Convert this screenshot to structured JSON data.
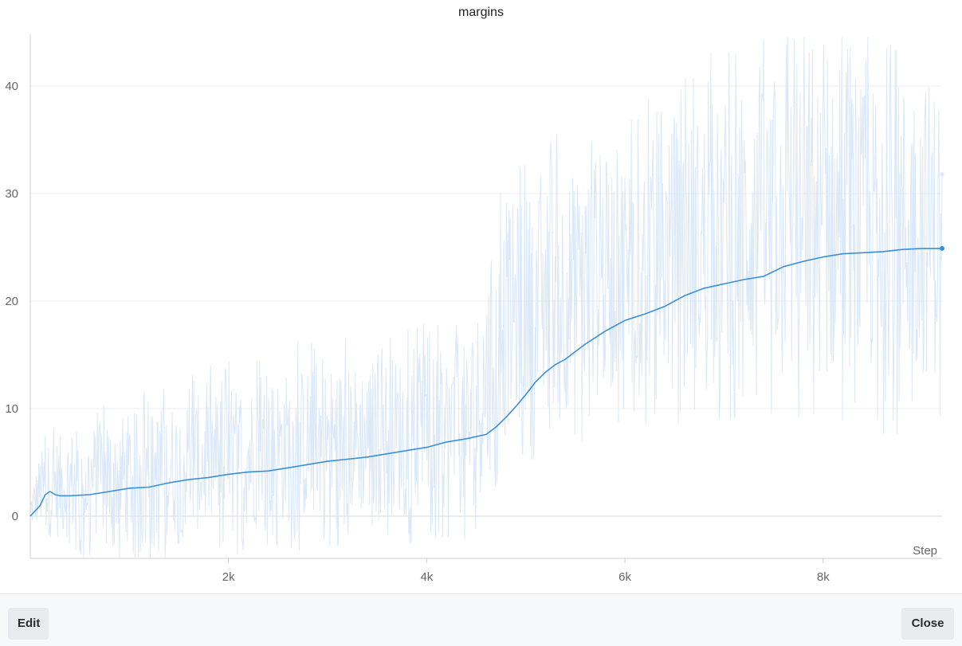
{
  "chart_data": {
    "type": "line",
    "title": "margins",
    "xlabel": "Step",
    "ylabel": "",
    "xlim": [
      0,
      9200
    ],
    "ylim": [
      -4,
      45
    ],
    "x_ticks": [
      2000,
      4000,
      6000,
      8000
    ],
    "x_tick_labels": [
      "2k",
      "4k",
      "6k",
      "8k"
    ],
    "y_ticks": [
      0,
      10,
      20,
      30,
      40
    ],
    "y_tick_labels": [
      "0",
      "10",
      "20",
      "30",
      "40"
    ],
    "grid": true,
    "series": [
      {
        "kind": "raw",
        "color": "#dbe8f7",
        "band_x": [
          0,
          100,
          200,
          400,
          800,
          1200,
          1600,
          2000,
          2400,
          2800,
          3200,
          3600,
          4000,
          4400,
          4600,
          4750,
          5000,
          5500,
          6000,
          6500,
          7000,
          7500,
          8000,
          8500,
          9000,
          9200
        ],
        "band_low": [
          -1,
          -1,
          -2,
          -2,
          -2,
          -2,
          -1.5,
          -1,
          -1,
          -0.5,
          0,
          0,
          0.5,
          0,
          3,
          8,
          9,
          10,
          12,
          13,
          14,
          14,
          13,
          13,
          13,
          13
        ],
        "band_high": [
          2,
          6,
          7,
          8,
          9,
          10,
          11,
          12,
          13,
          14,
          14,
          15,
          15,
          16,
          22,
          28,
          30,
          32,
          34,
          36,
          39,
          40,
          40,
          40,
          41,
          40
        ],
        "last": 31.8
      },
      {
        "kind": "smoothed",
        "color": "#3a8fd8",
        "x": [
          0,
          50,
          100,
          150,
          200,
          250,
          300,
          400,
          600,
          800,
          1000,
          1200,
          1400,
          1600,
          1800,
          2000,
          2200,
          2400,
          2600,
          2800,
          3000,
          3200,
          3400,
          3600,
          3800,
          4000,
          4200,
          4400,
          4600,
          4700,
          4800,
          4900,
          5000,
          5100,
          5200,
          5300,
          5400,
          5500,
          5600,
          5700,
          5800,
          6000,
          6200,
          6400,
          6600,
          6800,
          7000,
          7200,
          7400,
          7600,
          7800,
          8000,
          8200,
          8400,
          8600,
          8800,
          9000,
          9200
        ],
        "y": [
          0,
          0.5,
          1.0,
          2.0,
          2.3,
          2.0,
          1.9,
          1.9,
          2.0,
          2.3,
          2.6,
          2.7,
          3.1,
          3.4,
          3.6,
          3.9,
          4.1,
          4.2,
          4.5,
          4.8,
          5.1,
          5.3,
          5.5,
          5.8,
          6.1,
          6.4,
          6.9,
          7.2,
          7.6,
          8.3,
          9.2,
          10.2,
          11.3,
          12.5,
          13.4,
          14.1,
          14.6,
          15.3,
          16.0,
          16.6,
          17.2,
          18.2,
          18.8,
          19.5,
          20.5,
          21.2,
          21.6,
          22.0,
          22.3,
          23.2,
          23.7,
          24.1,
          24.4,
          24.5,
          24.6,
          24.8,
          24.9,
          24.9
        ]
      }
    ]
  },
  "footer": {
    "edit_label": "Edit",
    "close_label": "Close"
  }
}
